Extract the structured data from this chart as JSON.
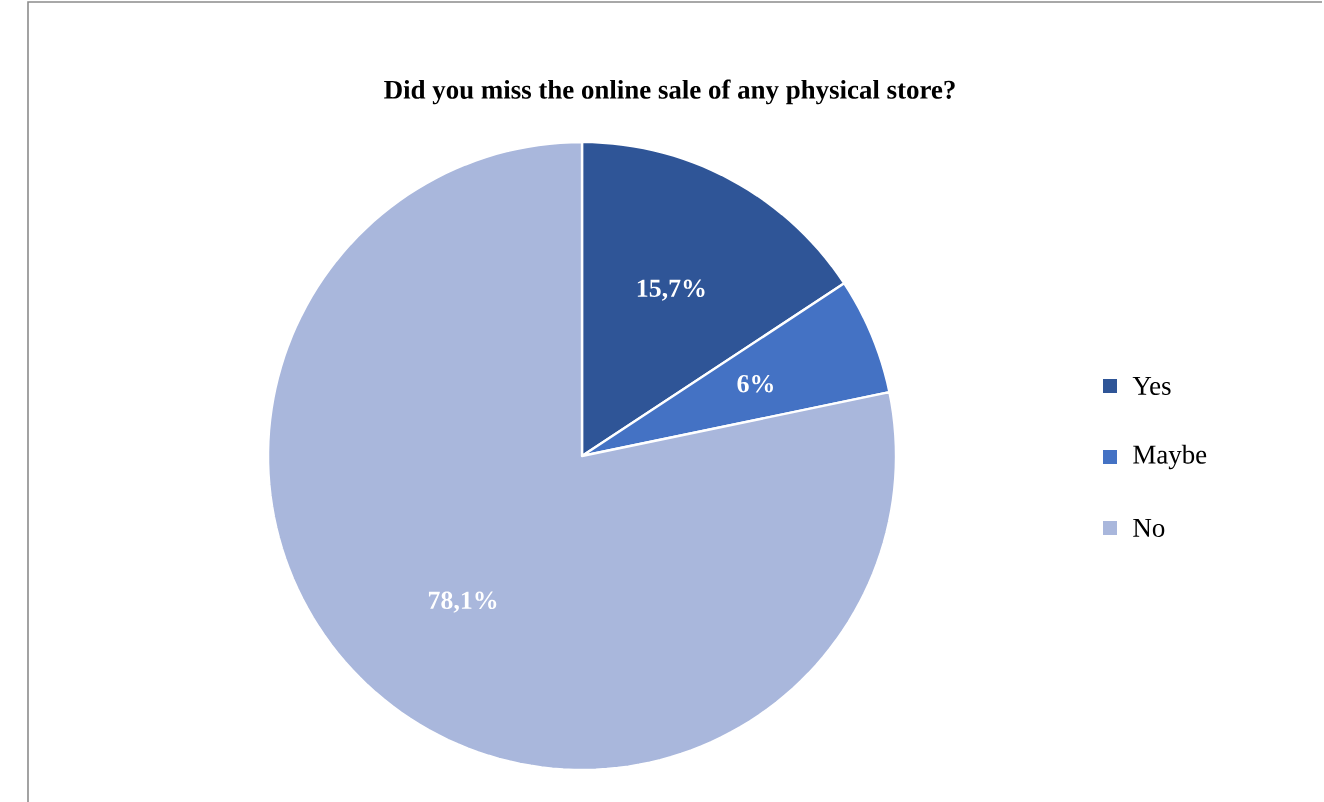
{
  "chart_data": {
    "type": "pie",
    "title": "Did you miss the online sale of any physical store?",
    "categories": [
      "Yes",
      "Maybe",
      "No"
    ],
    "values": [
      15.7,
      6,
      78.1
    ],
    "value_labels": [
      "15,7%",
      "6%",
      "78,1%"
    ],
    "colors": [
      "#2f5597",
      "#4472c4",
      "#a9b7dc"
    ],
    "legend": "right"
  }
}
